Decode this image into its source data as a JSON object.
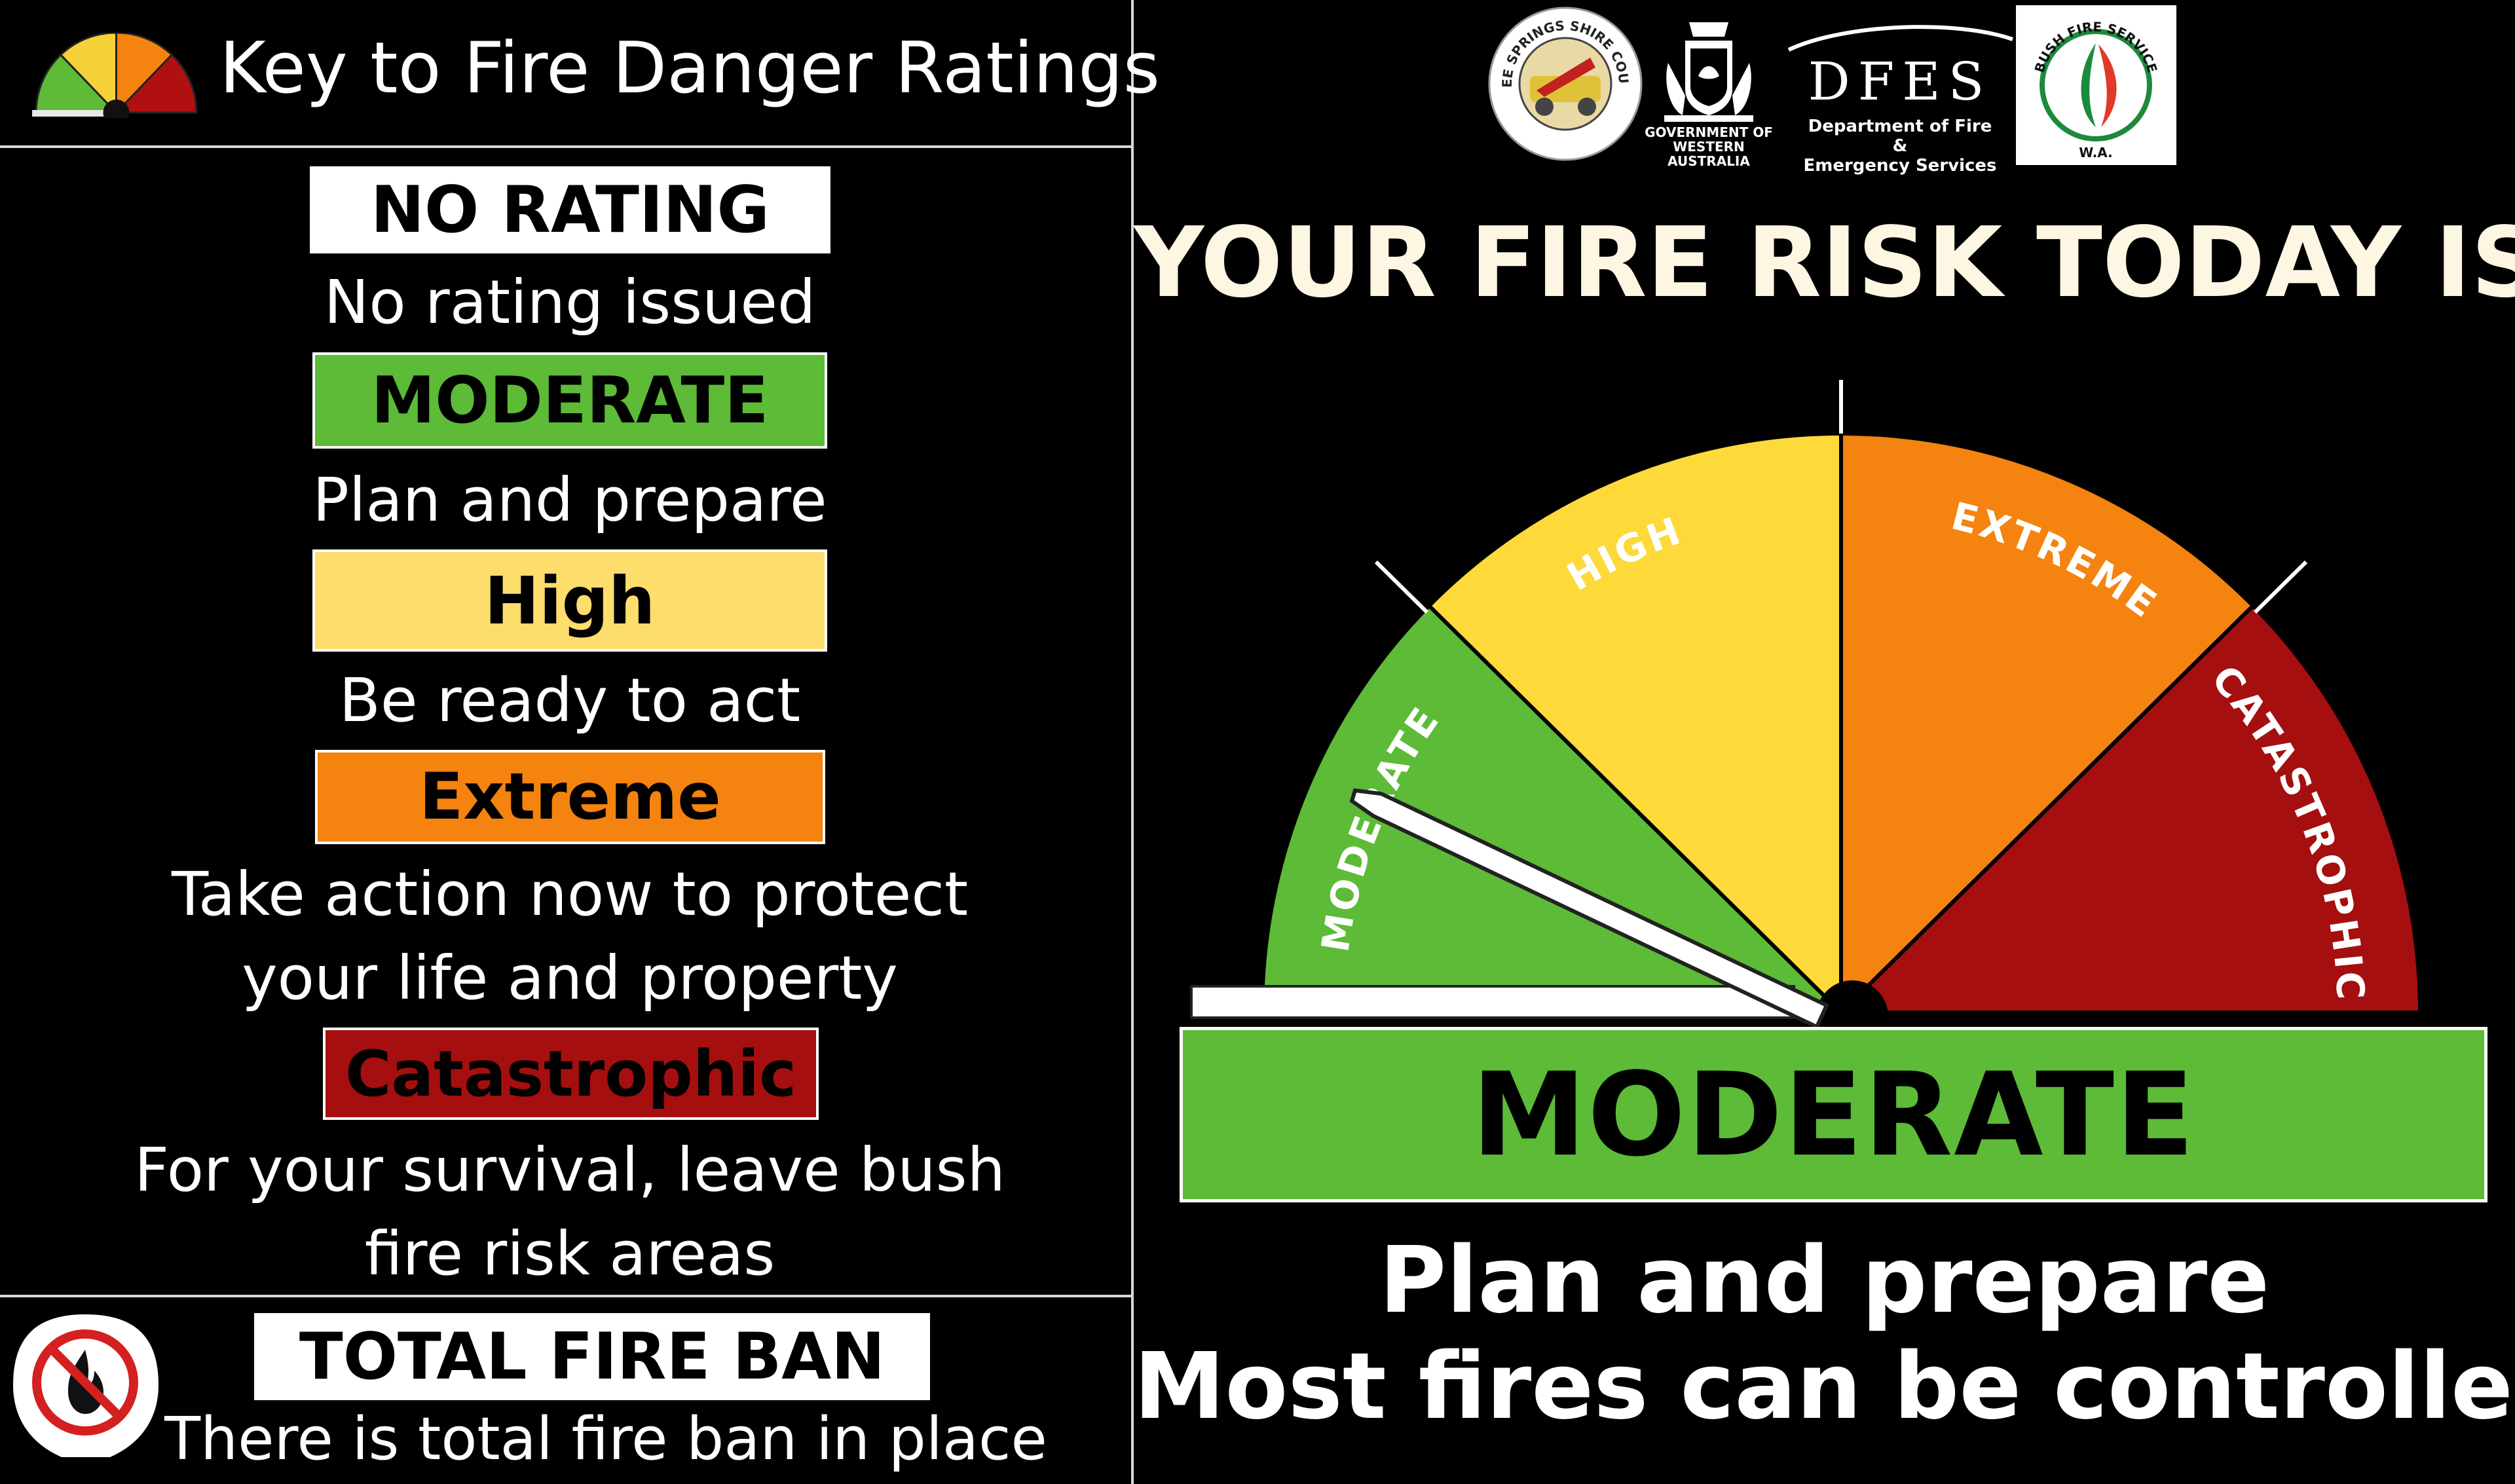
{
  "key": {
    "title": "Key to Fire Danger Ratings",
    "ratings": [
      {
        "label": "NO RATING",
        "description": "No rating issued",
        "color": "#ffffff"
      },
      {
        "label": "MODERATE",
        "description": "Plan and prepare",
        "color": "#5dbb37"
      },
      {
        "label": "High",
        "description": "Be ready to act",
        "color": "#fddd6b"
      },
      {
        "label": "Extreme",
        "description": "Take action now to protect\nyour life and property",
        "color": "#f4830f"
      },
      {
        "label": "Catastrophic",
        "description": "For your survival, leave bush\nfire risk areas",
        "color": "#a50f0f"
      }
    ],
    "total_fire_ban": {
      "label": "TOTAL FIRE BAN",
      "description": "There is total fire ban in place",
      "icon": "no-fire-icon"
    }
  },
  "logos": {
    "council_ring_text": "THREE SPRINGS SHIRE COUNCIL",
    "gov_text": "GOVERNMENT OF\nWESTERN AUSTRALIA",
    "dfes_name": "DFES",
    "dfes_sub": "Department of Fire &\nEmergency Services",
    "bfs_ring_text": "BUSH FIRE SERVICE",
    "bfs_sub": "W.A."
  },
  "main": {
    "heading": "YOUR FIRE RISK TODAY IS",
    "gauge": {
      "segments": [
        {
          "label": "MODERATE",
          "color": "#5dbb37"
        },
        {
          "label": "HIGH",
          "color": "#fdd93a"
        },
        {
          "label": "EXTREME",
          "color": "#f4830f"
        },
        {
          "label": "CATASTROPHIC",
          "color": "#a50f0f"
        }
      ],
      "needle_rating": "MODERATE"
    },
    "current_rating": "MODERATE",
    "current_color": "#5dbb37",
    "message_1": "Plan and prepare",
    "message_2": "Most fires can be controlled."
  }
}
